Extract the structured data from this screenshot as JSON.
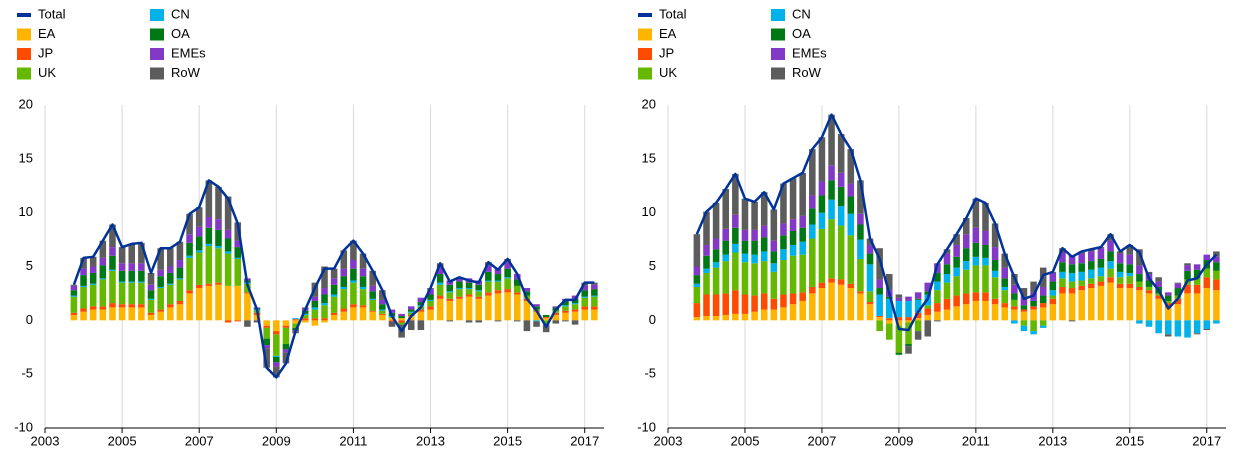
{
  "chart_data": [
    {
      "type": "bar",
      "grid": "x",
      "x": [
        2003.75,
        2004,
        2004.25,
        2004.5,
        2004.75,
        2005,
        2005.25,
        2005.5,
        2005.75,
        2006,
        2006.25,
        2006.5,
        2006.75,
        2007,
        2007.25,
        2007.5,
        2007.75,
        2008,
        2008.25,
        2008.5,
        2008.75,
        2009,
        2009.25,
        2009.5,
        2009.75,
        2010,
        2010.25,
        2010.5,
        2010.75,
        2011,
        2011.25,
        2011.5,
        2011.75,
        2012,
        2012.25,
        2012.5,
        2012.75,
        2013,
        2013.25,
        2013.5,
        2013.75,
        2014,
        2014.25,
        2014.5,
        2014.75,
        2015,
        2015.25,
        2015.5,
        2015.75,
        2016,
        2016.25,
        2016.5,
        2016.75,
        2017,
        2017.25
      ],
      "xlim": [
        2003,
        2017.5
      ],
      "xticks": [
        2003,
        2005,
        2007,
        2009,
        2011,
        2013,
        2015,
        2017
      ],
      "ylim": [
        -10,
        20
      ],
      "yticks": [
        -10,
        -5,
        0,
        5,
        10,
        15,
        20
      ],
      "series": [
        {
          "name": "Total",
          "kind": "line",
          "color": "#003299",
          "values": [
            3.3,
            5.8,
            5.9,
            7.4,
            8.9,
            6.8,
            7.1,
            7.2,
            4.4,
            6.7,
            6.7,
            7.3,
            9.9,
            10.5,
            13.0,
            12.4,
            11.3,
            9.0,
            3.3,
            1.0,
            -4.4,
            -5.3,
            -4.0,
            -1.0,
            1.0,
            3.0,
            4.8,
            4.8,
            6.5,
            7.4,
            6.2,
            4.6,
            2.8,
            0.4,
            -1.0,
            0.4,
            1.2,
            3.0,
            5.3,
            3.6,
            4.0,
            3.7,
            3.5,
            5.4,
            4.7,
            5.7,
            4.3,
            2.0,
            0.9,
            -0.6,
            1.0,
            1.9,
            1.9,
            3.5,
            3.5
          ]
        },
        {
          "name": "EA",
          "kind": "bar",
          "color": "#ffb400",
          "values": [
            0.5,
            0.8,
            1.0,
            1.0,
            1.2,
            1.2,
            1.2,
            1.2,
            0.5,
            0.8,
            1.2,
            1.5,
            2.5,
            3.0,
            3.2,
            3.3,
            3.2,
            3.2,
            2.5,
            0.5,
            -0.5,
            -1.0,
            -0.5,
            -0.3,
            -0.2,
            -0.5,
            -0.2,
            0.5,
            0.8,
            1.2,
            1.2,
            0.8,
            0.5,
            0.2,
            0.2,
            0.4,
            0.8,
            1.0,
            2.0,
            1.8,
            2.0,
            2.2,
            2.0,
            2.3,
            2.5,
            2.6,
            2.4,
            1.8,
            0.8,
            0.2,
            0.5,
            0.7,
            0.8,
            1.0,
            1.0
          ]
        },
        {
          "name": "JP",
          "kind": "bar",
          "color": "#ff4b00",
          "values": [
            0.2,
            0.3,
            0.3,
            0.3,
            0.4,
            0.3,
            0.3,
            0.3,
            0.2,
            0.2,
            0.3,
            0.3,
            0.3,
            0.3,
            0.2,
            0.2,
            -0.2,
            -0.1,
            0.1,
            0.2,
            -0.2,
            -0.3,
            -0.2,
            0.1,
            0.2,
            0.2,
            0.2,
            0.2,
            0.3,
            0.3,
            0.2,
            0.1,
            0.1,
            -0.1,
            -0.2,
            0.1,
            0.2,
            0.3,
            0.3,
            0.2,
            0.2,
            0.2,
            0.2,
            0.3,
            0.3,
            0.3,
            0.2,
            0.2,
            0.1,
            0.1,
            0.2,
            0.2,
            0.2,
            0.3,
            0.3
          ]
        },
        {
          "name": "UK",
          "kind": "bar",
          "color": "#65b800",
          "values": [
            1.5,
            2.0,
            2.0,
            2.5,
            3.0,
            2.0,
            2.0,
            2.0,
            1.2,
            2.0,
            1.8,
            2.0,
            3.0,
            3.0,
            3.5,
            3.2,
            3.0,
            2.5,
            0.8,
            0.2,
            -1.0,
            -2.0,
            -1.5,
            -0.4,
            0.3,
            0.8,
            1.2,
            1.5,
            1.8,
            2.0,
            1.5,
            1.0,
            0.3,
            0.1,
            -0.2,
            0.2,
            0.3,
            0.5,
            1.0,
            0.6,
            0.7,
            0.5,
            0.5,
            1.0,
            0.8,
            1.0,
            0.6,
            0.3,
            0.1,
            -0.3,
            0.2,
            0.4,
            0.5,
            0.8,
            0.9
          ]
        },
        {
          "name": "CN",
          "kind": "bar",
          "color": "#00b1ea",
          "values": [
            0.1,
            0.1,
            0.1,
            0.1,
            0.1,
            0.1,
            0.1,
            0.1,
            0.1,
            0.1,
            0.1,
            0.1,
            0.2,
            0.2,
            0.2,
            0.2,
            0.2,
            0.1,
            0.1,
            0.1,
            0.0,
            -0.1,
            0.0,
            0.1,
            0.1,
            0.2,
            0.2,
            0.2,
            0.2,
            0.2,
            0.2,
            0.1,
            0.1,
            0.1,
            0.0,
            0.1,
            0.1,
            0.1,
            0.2,
            0.1,
            0.1,
            0.1,
            0.1,
            0.1,
            0.1,
            0.1,
            0.0,
            0.0,
            -0.1,
            -0.1,
            0.0,
            0.1,
            0.1,
            0.1,
            0.1
          ]
        },
        {
          "name": "OA",
          "kind": "bar",
          "color": "#007816",
          "values": [
            0.5,
            1.0,
            1.0,
            1.2,
            1.3,
            1.0,
            1.0,
            1.0,
            0.8,
            1.0,
            1.0,
            1.0,
            1.2,
            1.3,
            1.5,
            1.5,
            1.2,
            1.0,
            0.2,
            0.1,
            -0.6,
            -0.5,
            -0.5,
            -0.2,
            0.3,
            0.6,
            0.8,
            0.9,
            1.0,
            1.1,
            1.0,
            0.7,
            0.5,
            0.3,
            0.2,
            0.2,
            0.3,
            0.5,
            0.8,
            0.6,
            0.6,
            0.5,
            0.5,
            0.8,
            0.6,
            0.8,
            0.6,
            0.4,
            0.3,
            0.2,
            0.3,
            0.4,
            0.4,
            0.6,
            0.6
          ]
        },
        {
          "name": "EMEs",
          "kind": "bar",
          "color": "#8139c6",
          "values": [
            0.4,
            0.6,
            0.6,
            0.7,
            0.8,
            0.7,
            0.7,
            0.7,
            0.5,
            0.6,
            0.6,
            0.7,
            0.8,
            0.9,
            1.0,
            1.0,
            0.8,
            0.6,
            0.2,
            0.1,
            -0.3,
            -0.4,
            -0.3,
            -0.1,
            0.2,
            0.4,
            0.6,
            0.6,
            0.7,
            0.8,
            0.7,
            0.5,
            0.4,
            0.3,
            0.2,
            0.3,
            0.4,
            0.5,
            0.6,
            0.4,
            0.4,
            0.4,
            0.4,
            0.6,
            0.5,
            0.6,
            0.5,
            0.3,
            0.2,
            -0.1,
            0.1,
            0.2,
            0.3,
            0.4,
            0.4
          ]
        },
        {
          "name": "RoW",
          "kind": "bar",
          "color": "#5c5c5c",
          "values": [
            0.1,
            1.0,
            0.9,
            1.6,
            2.1,
            1.5,
            1.8,
            1.9,
            1.1,
            2.0,
            1.7,
            1.7,
            1.9,
            1.8,
            3.4,
            3.0,
            3.1,
            1.7,
            -0.6,
            -0.2,
            -1.8,
            -1.0,
            -1.0,
            -0.2,
            0.1,
            1.3,
            2.0,
            0.9,
            1.7,
            1.8,
            1.4,
            1.4,
            0.9,
            -0.5,
            -1.2,
            -0.9,
            -0.9,
            0.1,
            0.4,
            -0.1,
            0.0,
            -0.2,
            -0.2,
            0.3,
            -0.1,
            0.3,
            -0.1,
            -1.0,
            -0.5,
            -0.6,
            -0.3,
            -0.1,
            -0.4,
            0.3,
            0.2
          ]
        }
      ]
    },
    {
      "type": "bar",
      "grid": "x",
      "x": [
        2003.75,
        2004,
        2004.25,
        2004.5,
        2004.75,
        2005,
        2005.25,
        2005.5,
        2005.75,
        2006,
        2006.25,
        2006.5,
        2006.75,
        2007,
        2007.25,
        2007.5,
        2007.75,
        2008,
        2008.25,
        2008.5,
        2008.75,
        2009,
        2009.25,
        2009.5,
        2009.75,
        2010,
        2010.25,
        2010.5,
        2010.75,
        2011,
        2011.25,
        2011.5,
        2011.75,
        2012,
        2012.25,
        2012.5,
        2012.75,
        2013,
        2013.25,
        2013.5,
        2013.75,
        2014,
        2014.25,
        2014.5,
        2014.75,
        2015,
        2015.25,
        2015.5,
        2015.75,
        2016,
        2016.25,
        2016.5,
        2016.75,
        2017,
        2017.25
      ],
      "xlim": [
        2003,
        2017.5
      ],
      "xticks": [
        2003,
        2005,
        2007,
        2009,
        2011,
        2013,
        2015,
        2017
      ],
      "ylim": [
        -10,
        20
      ],
      "yticks": [
        -10,
        -5,
        0,
        5,
        10,
        15,
        20
      ],
      "series": [
        {
          "name": "Total",
          "kind": "line",
          "color": "#003299",
          "values": [
            8.0,
            10.1,
            10.9,
            12.2,
            13.6,
            11.3,
            11.0,
            11.9,
            10.3,
            12.7,
            13.2,
            13.7,
            15.9,
            17.0,
            19.1,
            17.3,
            15.9,
            13.0,
            7.6,
            5.7,
            2.5,
            -0.8,
            -0.9,
            0.8,
            2.0,
            5.2,
            6.6,
            8.0,
            9.5,
            11.3,
            10.9,
            9.0,
            6.2,
            4.0,
            2.0,
            2.3,
            4.2,
            4.5,
            6.7,
            5.9,
            6.4,
            6.6,
            6.8,
            8.0,
            6.4,
            7.0,
            6.3,
            3.9,
            2.8,
            1.1,
            2.0,
            3.7,
            3.9,
            5.2,
            6.1
          ]
        },
        {
          "name": "EA",
          "kind": "bar",
          "color": "#ffb400",
          "values": [
            0.3,
            0.4,
            0.4,
            0.5,
            0.6,
            0.6,
            0.8,
            1.0,
            1.0,
            1.2,
            1.5,
            1.8,
            2.5,
            3.0,
            3.5,
            3.3,
            3.0,
            2.5,
            1.5,
            0.3,
            -0.3,
            -0.5,
            -0.2,
            0.2,
            0.5,
            0.8,
            1.0,
            1.3,
            1.5,
            1.8,
            1.8,
            1.5,
            1.2,
            1.0,
            0.8,
            1.0,
            1.2,
            1.5,
            2.5,
            2.5,
            2.8,
            3.0,
            3.2,
            3.5,
            3.0,
            3.0,
            2.8,
            2.5,
            2.0,
            1.2,
            1.5,
            2.5,
            2.5,
            3.0,
            2.8
          ]
        },
        {
          "name": "JP",
          "kind": "bar",
          "color": "#ff4b00",
          "values": [
            1.3,
            2.0,
            2.0,
            2.0,
            2.2,
            1.8,
            1.5,
            1.5,
            1.0,
            1.2,
            1.0,
            0.8,
            0.6,
            0.5,
            0.4,
            0.5,
            0.4,
            0.2,
            0.2,
            0.1,
            0.2,
            0.3,
            0.3,
            0.5,
            0.6,
            0.8,
            1.0,
            1.0,
            1.0,
            0.8,
            0.8,
            0.5,
            0.4,
            0.3,
            0.2,
            0.3,
            0.4,
            0.5,
            0.6,
            0.5,
            0.4,
            0.4,
            0.4,
            0.5,
            0.4,
            0.4,
            0.3,
            0.3,
            0.3,
            0.4,
            0.5,
            0.8,
            0.8,
            1.0,
            1.0
          ]
        },
        {
          "name": "UK",
          "kind": "bar",
          "color": "#65b800",
          "values": [
            1.5,
            2.0,
            2.5,
            3.0,
            3.5,
            3.0,
            3.0,
            3.0,
            2.5,
            3.2,
            3.5,
            3.5,
            4.5,
            5.0,
            5.5,
            5.0,
            4.5,
            3.0,
            1.0,
            -1.0,
            -1.5,
            -2.5,
            -2.0,
            -1.0,
            0.3,
            1.2,
            1.5,
            1.8,
            2.2,
            2.5,
            2.5,
            2.0,
            1.2,
            0.6,
            -0.5,
            -1.0,
            -0.5,
            0.3,
            0.8,
            0.6,
            0.5,
            0.5,
            0.5,
            0.8,
            0.6,
            0.7,
            0.5,
            0.3,
            0.2,
            0.2,
            0.3,
            0.5,
            0.6,
            0.8,
            0.8
          ]
        },
        {
          "name": "CN",
          "kind": "bar",
          "color": "#00b1ea",
          "values": [
            0.3,
            0.4,
            0.5,
            0.6,
            0.8,
            0.8,
            0.8,
            0.9,
            0.8,
            1.0,
            1.0,
            1.2,
            1.3,
            1.5,
            1.8,
            1.8,
            2.0,
            1.8,
            2.5,
            2.0,
            1.8,
            1.5,
            1.5,
            1.2,
            1.0,
            0.8,
            0.8,
            0.8,
            0.8,
            0.8,
            0.7,
            0.6,
            0.3,
            -0.3,
            -0.5,
            -0.3,
            -0.2,
            0.5,
            0.6,
            0.8,
            0.8,
            0.8,
            0.8,
            0.7,
            0.5,
            0.3,
            -0.3,
            -0.6,
            -1.2,
            -1.3,
            -1.5,
            -1.6,
            -1.2,
            -0.8,
            -0.3
          ]
        },
        {
          "name": "OA",
          "kind": "bar",
          "color": "#007816",
          "values": [
            0.8,
            1.2,
            1.2,
            1.3,
            1.5,
            1.2,
            1.3,
            1.3,
            1.1,
            1.3,
            1.3,
            1.3,
            1.5,
            1.6,
            1.8,
            1.8,
            1.6,
            1.4,
            1.0,
            0.6,
            0.2,
            -0.2,
            -0.2,
            0.1,
            0.3,
            0.8,
            0.9,
            1.0,
            1.2,
            1.3,
            1.2,
            1.0,
            0.8,
            0.6,
            0.4,
            0.5,
            0.7,
            0.8,
            0.9,
            0.8,
            0.8,
            0.8,
            0.8,
            0.9,
            0.8,
            0.8,
            0.7,
            0.6,
            0.6,
            0.5,
            0.7,
            0.8,
            0.8,
            0.8,
            0.8
          ]
        },
        {
          "name": "EMEs",
          "kind": "bar",
          "color": "#8139c6",
          "values": [
            0.8,
            1.0,
            1.0,
            1.1,
            1.2,
            1.0,
            1.0,
            1.1,
            1.0,
            1.1,
            1.1,
            1.1,
            1.2,
            1.3,
            1.4,
            1.3,
            1.2,
            1.0,
            0.8,
            0.8,
            0.6,
            0.3,
            0.4,
            0.6,
            0.8,
            0.9,
            1.0,
            1.1,
            1.3,
            1.4,
            1.3,
            1.2,
            1.0,
            0.8,
            0.8,
            0.8,
            0.8,
            0.8,
            0.9,
            0.8,
            0.9,
            0.9,
            1.0,
            1.0,
            0.9,
            0.9,
            0.8,
            0.6,
            0.5,
            0.3,
            0.4,
            0.5,
            0.5,
            0.5,
            0.5
          ]
        },
        {
          "name": "RoW",
          "kind": "bar",
          "color": "#5c5c5c",
          "values": [
            3.0,
            3.1,
            3.3,
            3.7,
            3.8,
            2.9,
            2.6,
            3.1,
            2.9,
            3.7,
            3.8,
            4.0,
            4.3,
            4.1,
            4.7,
            3.6,
            3.2,
            3.1,
            0.6,
            2.9,
            1.5,
            0.3,
            -0.7,
            -0.8,
            -1.5,
            -0.1,
            0.4,
            1.0,
            1.5,
            2.7,
            2.6,
            2.2,
            1.3,
            1.0,
            0.8,
            1.0,
            1.8,
            0.1,
            0.4,
            -0.1,
            0.2,
            0.2,
            0.1,
            0.6,
            0.2,
            0.9,
            1.5,
            0.2,
            0.4,
            -0.2,
            0.1,
            0.2,
            -0.1,
            -0.1,
            0.5
          ]
        }
      ]
    }
  ]
}
